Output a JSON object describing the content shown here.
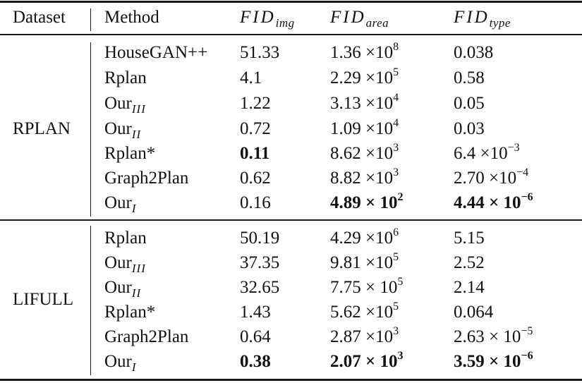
{
  "table": {
    "headers": {
      "dataset": "Dataset",
      "method": "Method",
      "fid_img": {
        "base": "FID",
        "sub": "img"
      },
      "fid_area": {
        "base": "FID",
        "sub": "area"
      },
      "fid_type": {
        "base": "FID",
        "sub": "type"
      }
    },
    "groups": [
      {
        "dataset": "RPLAN",
        "rows": [
          {
            "method": "HouseGAN++",
            "method_sub": "",
            "img": "51.33",
            "img_bold": false,
            "area_m": "1.36 ×10",
            "area_e": "8",
            "area_bold": false,
            "type_m": "0.038",
            "type_e": "",
            "type_bold": false
          },
          {
            "method": "Rplan",
            "method_sub": "",
            "img": "4.1",
            "img_bold": false,
            "area_m": "2.29 ×10",
            "area_e": "5",
            "area_bold": false,
            "type_m": "0.58",
            "type_e": "",
            "type_bold": false
          },
          {
            "method": "Our",
            "method_sub": "III",
            "img": "1.22",
            "img_bold": false,
            "area_m": "3.13 ×10",
            "area_e": "4",
            "area_bold": false,
            "type_m": "0.05",
            "type_e": "",
            "type_bold": false
          },
          {
            "method": "Our",
            "method_sub": "II",
            "img": "0.72",
            "img_bold": false,
            "area_m": "1.09 ×10",
            "area_e": "4",
            "area_bold": false,
            "type_m": "0.03",
            "type_e": "",
            "type_bold": false
          },
          {
            "method": "Rplan*",
            "method_sub": "",
            "img": "0.11",
            "img_bold": true,
            "area_m": "8.62 ×10",
            "area_e": "3",
            "area_bold": false,
            "type_m": "6.4 ×10",
            "type_e": "−3",
            "type_bold": false
          },
          {
            "method": "Graph2Plan",
            "method_sub": "",
            "img": "0.62",
            "img_bold": false,
            "area_m": "8.82 ×10",
            "area_e": "3",
            "area_bold": false,
            "type_m": "2.70 ×10",
            "type_e": "−4",
            "type_bold": false
          },
          {
            "method": "Our",
            "method_sub": "I",
            "img": "0.16",
            "img_bold": false,
            "area_m": "4.89 × 10",
            "area_e": "2",
            "area_bold": true,
            "type_m": "4.44 × 10",
            "type_e": "−6",
            "type_bold": true
          }
        ]
      },
      {
        "dataset": "LIFULL",
        "rows": [
          {
            "method": "Rplan",
            "method_sub": "",
            "img": "50.19",
            "img_bold": false,
            "area_m": "4.29 ×10",
            "area_e": "6",
            "area_bold": false,
            "type_m": "5.15",
            "type_e": "",
            "type_bold": false
          },
          {
            "method": "Our",
            "method_sub": "III",
            "img": "37.35",
            "img_bold": false,
            "area_m": "9.81 ×10",
            "area_e": "5",
            "area_bold": false,
            "type_m": "2.52",
            "type_e": "",
            "type_bold": false
          },
          {
            "method": "Our",
            "method_sub": "II",
            "img": "32.65",
            "img_bold": false,
            "area_m": "7.75 × 10",
            "area_e": "5",
            "area_bold": false,
            "type_m": "2.14",
            "type_e": "",
            "type_bold": false
          },
          {
            "method": "Rplan*",
            "method_sub": "",
            "img": "1.43",
            "img_bold": false,
            "area_m": "5.62 ×10",
            "area_e": "5",
            "area_bold": false,
            "type_m": "0.064",
            "type_e": "",
            "type_bold": false
          },
          {
            "method": "Graph2Plan",
            "method_sub": "",
            "img": "0.64",
            "img_bold": false,
            "area_m": "2.87 ×10",
            "area_e": "3",
            "area_bold": false,
            "type_m": "2.63 × 10",
            "type_e": "−5",
            "type_bold": false
          },
          {
            "method": "Our",
            "method_sub": "I",
            "img": "0.38",
            "img_bold": true,
            "area_m": "2.07 × 10",
            "area_e": "3",
            "area_bold": true,
            "type_m": "3.59 × 10",
            "type_e": "−6",
            "type_bold": true
          }
        ]
      }
    ]
  }
}
